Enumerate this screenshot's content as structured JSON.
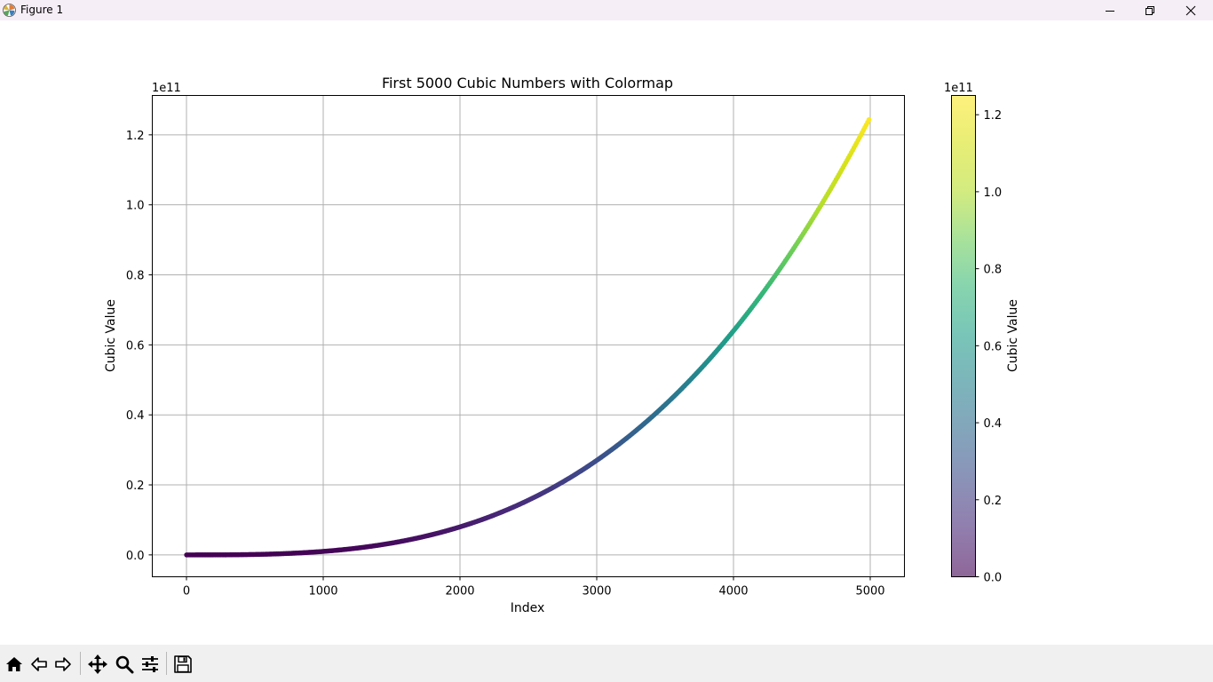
{
  "window": {
    "title": "Figure 1",
    "icon": "matplotlib-icon",
    "controls": [
      "minimize-icon",
      "restore-icon",
      "close-icon"
    ]
  },
  "toolbar": {
    "buttons": [
      {
        "name": "home",
        "icon": "home-icon"
      },
      {
        "name": "back",
        "icon": "back-arrow-icon"
      },
      {
        "name": "forward",
        "icon": "forward-arrow-icon"
      },
      {
        "name": "pan",
        "icon": "move-icon"
      },
      {
        "name": "zoom",
        "icon": "magnifier-icon"
      },
      {
        "name": "configure-subplots",
        "icon": "sliders-icon"
      },
      {
        "name": "save",
        "icon": "floppy-disk-icon"
      }
    ]
  },
  "chart_data": {
    "type": "scatter",
    "title": "First 5000 Cubic Numbers with Colormap",
    "xlabel": "Index",
    "ylabel": "Cubic Value",
    "y_offset_text": "1e11",
    "xlim": [
      -250,
      5250
    ],
    "ylim": [
      -6250000000,
      131250000000
    ],
    "x_ticks": [
      0,
      1000,
      2000,
      3000,
      4000,
      5000
    ],
    "x_tick_labels": [
      "0",
      "1000",
      "2000",
      "3000",
      "4000",
      "5000"
    ],
    "y_ticks": [
      0,
      20000000000,
      40000000000,
      60000000000,
      80000000000,
      100000000000,
      120000000000
    ],
    "y_tick_labels": [
      "0.0",
      "0.2",
      "0.4",
      "0.6",
      "0.8",
      "1.0",
      "1.2"
    ],
    "grid": true,
    "series": [
      {
        "formula": "y = x^3",
        "x_start": 1,
        "x_end": 5000,
        "count": 5000
      }
    ],
    "colormap": "viridis",
    "colorbar": {
      "label": "Cubic Value",
      "offset_text": "1e11",
      "range": [
        0,
        125000000000
      ],
      "ticks": [
        0,
        20000000000,
        40000000000,
        60000000000,
        80000000000,
        100000000000,
        120000000000
      ],
      "tick_labels": [
        "0.0",
        "0.2",
        "0.4",
        "0.6",
        "0.8",
        "1.0",
        "1.2"
      ],
      "alpha": 0.6
    }
  },
  "colors": {
    "titlebar_bg": "#f6eef6",
    "toolbar_bg": "#f0f0f0",
    "grid": "#b0b0b0",
    "axes": "#000000"
  }
}
